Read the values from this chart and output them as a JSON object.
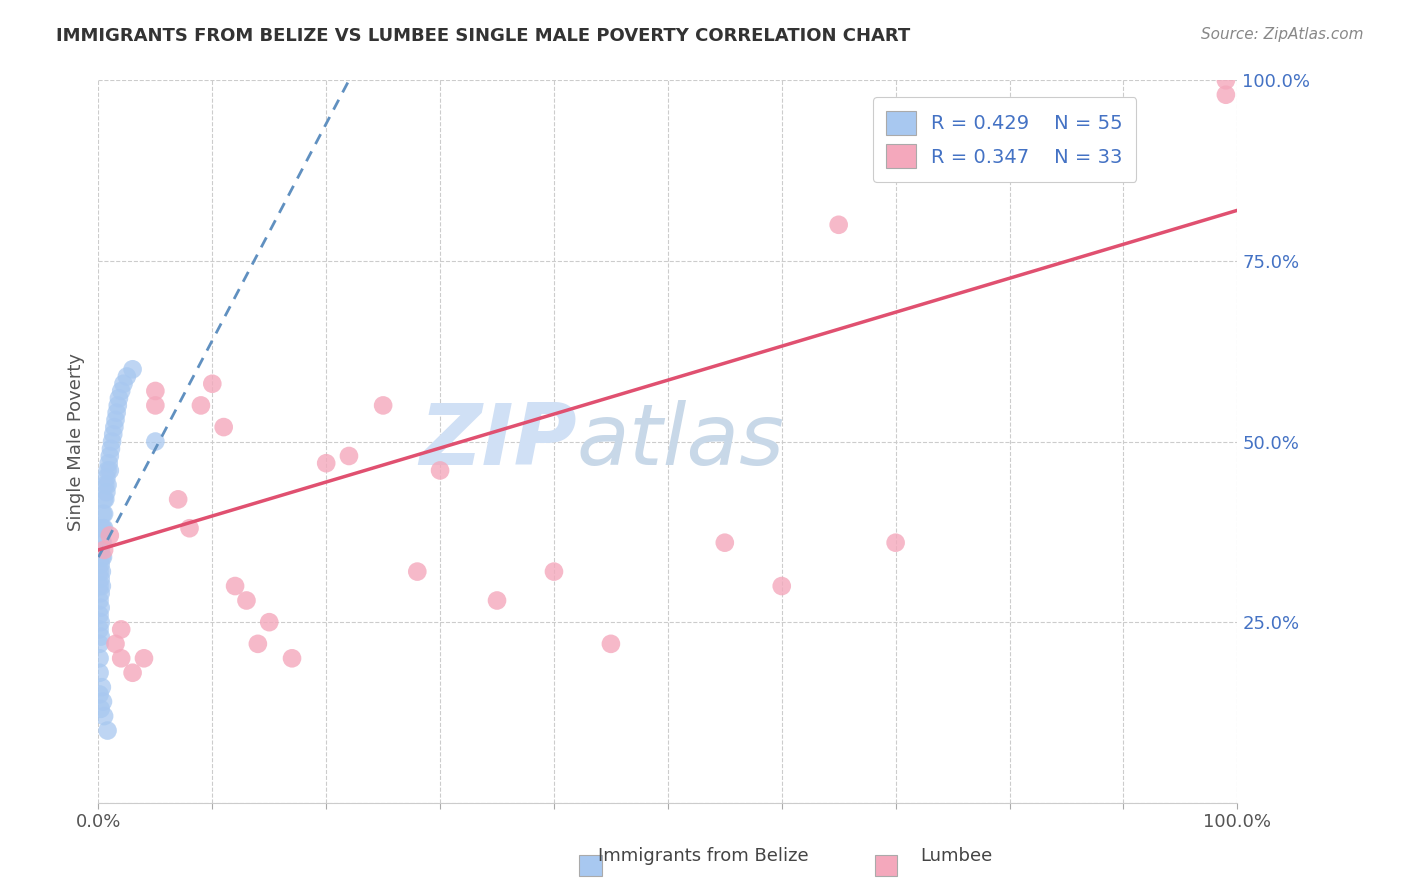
{
  "title": "IMMIGRANTS FROM BELIZE VS LUMBEE SINGLE MALE POVERTY CORRELATION CHART",
  "source": "Source: ZipAtlas.com",
  "ylabel": "Single Male Poverty",
  "xlim": [
    0,
    1
  ],
  "ylim": [
    0,
    1
  ],
  "legend_r1": "R = 0.429",
  "legend_n1": "N = 55",
  "legend_r2": "R = 0.347",
  "legend_n2": "N = 33",
  "belize_color": "#a8c8f0",
  "lumbee_color": "#f4a8bc",
  "belize_line_color": "#6090c0",
  "lumbee_line_color": "#e05070",
  "watermark_zip": "ZIP",
  "watermark_atlas": "atlas",
  "watermark_color": "#d0e0f5",
  "belize_x": [
    0.001,
    0.001,
    0.001,
    0.001,
    0.001,
    0.001,
    0.001,
    0.001,
    0.002,
    0.002,
    0.002,
    0.002,
    0.002,
    0.002,
    0.002,
    0.003,
    0.003,
    0.003,
    0.003,
    0.003,
    0.004,
    0.004,
    0.004,
    0.004,
    0.005,
    0.005,
    0.005,
    0.006,
    0.006,
    0.007,
    0.007,
    0.008,
    0.008,
    0.009,
    0.01,
    0.01,
    0.011,
    0.012,
    0.013,
    0.014,
    0.015,
    0.016,
    0.017,
    0.018,
    0.02,
    0.022,
    0.025,
    0.03,
    0.001,
    0.002,
    0.003,
    0.004,
    0.005,
    0.008,
    0.05
  ],
  "belize_y": [
    0.32,
    0.3,
    0.28,
    0.26,
    0.24,
    0.22,
    0.2,
    0.18,
    0.35,
    0.33,
    0.31,
    0.29,
    0.27,
    0.25,
    0.23,
    0.38,
    0.36,
    0.34,
    0.32,
    0.3,
    0.4,
    0.38,
    0.36,
    0.34,
    0.42,
    0.4,
    0.38,
    0.44,
    0.42,
    0.45,
    0.43,
    0.46,
    0.44,
    0.47,
    0.48,
    0.46,
    0.49,
    0.5,
    0.51,
    0.52,
    0.53,
    0.54,
    0.55,
    0.56,
    0.57,
    0.58,
    0.59,
    0.6,
    0.15,
    0.13,
    0.16,
    0.14,
    0.12,
    0.1,
    0.5
  ],
  "lumbee_x": [
    0.005,
    0.01,
    0.015,
    0.02,
    0.02,
    0.03,
    0.04,
    0.05,
    0.05,
    0.07,
    0.08,
    0.09,
    0.1,
    0.11,
    0.12,
    0.13,
    0.14,
    0.15,
    0.17,
    0.2,
    0.22,
    0.25,
    0.28,
    0.3,
    0.35,
    0.4,
    0.45,
    0.55,
    0.6,
    0.65,
    0.7,
    0.99,
    0.99
  ],
  "lumbee_y": [
    0.35,
    0.37,
    0.22,
    0.24,
    0.2,
    0.18,
    0.2,
    0.55,
    0.57,
    0.42,
    0.38,
    0.55,
    0.58,
    0.52,
    0.3,
    0.28,
    0.22,
    0.25,
    0.2,
    0.47,
    0.48,
    0.55,
    0.32,
    0.46,
    0.28,
    0.32,
    0.22,
    0.36,
    0.3,
    0.8,
    0.36,
    1.0,
    0.98
  ],
  "belize_trend_x0": 0.0,
  "belize_trend_x1": 0.22,
  "belize_trend_y0": 0.34,
  "belize_trend_y1": 1.0,
  "lumbee_trend_x0": 0.0,
  "lumbee_trend_x1": 1.0,
  "lumbee_trend_y0": 0.35,
  "lumbee_trend_y1": 0.82
}
